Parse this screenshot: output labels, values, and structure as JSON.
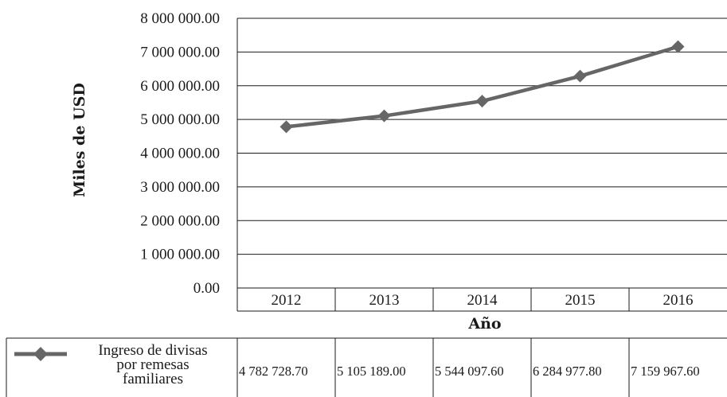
{
  "chart_data": {
    "type": "line",
    "categories": [
      "2012",
      "2013",
      "2014",
      "2015",
      "2016"
    ],
    "series": [
      {
        "name": "Ingreso de divisas por remesas familiares",
        "values": [
          4782728.7,
          5105189.0,
          5544097.6,
          6284977.8,
          7159967.6
        ],
        "value_labels": [
          "4 782 728.70",
          "5 105 189.00",
          "5 544 097.60",
          "6 284 977.80",
          "7 159 967.60"
        ],
        "color": "#666666",
        "marker": "diamond"
      }
    ],
    "y_ticks": [
      "0.00",
      "1 000 000.00",
      "2 000 000.00",
      "3 000 000.00",
      "4 000 000.00",
      "5 000 000.00",
      "6 000 000.00",
      "7 000 000.00",
      "8 000 000.00"
    ],
    "xlabel": "Año",
    "ylabel": "Miles de USD",
    "ylim": [
      0,
      8000000
    ],
    "grid": true,
    "legend": "data-table",
    "colors": {
      "line": "#666666",
      "grid": "#1a1a1a",
      "text": "#1a1a1a"
    }
  }
}
